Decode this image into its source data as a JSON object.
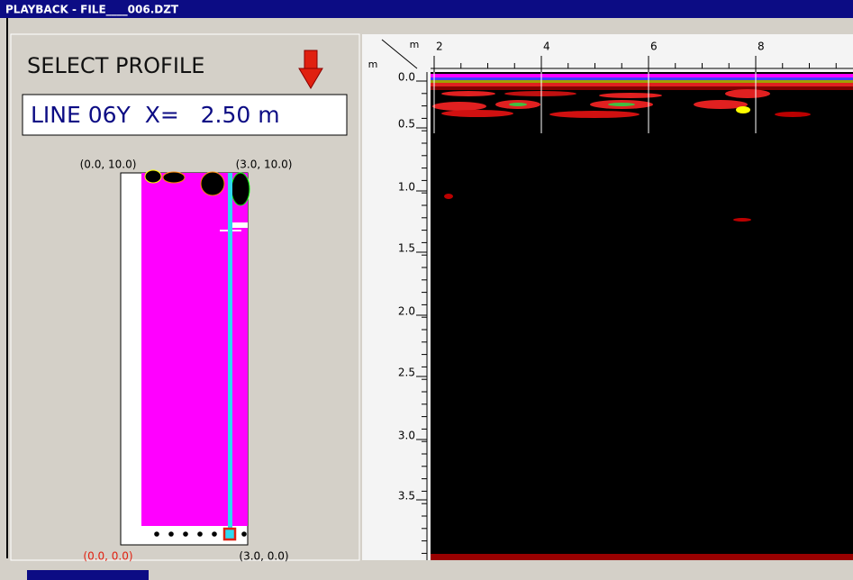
{
  "title_bar": {
    "title": "PLAYBACK - FILE____006.DZT"
  },
  "left_panel": {
    "heading": "SELECT PROFILE",
    "readout": "LINE 06Y  X=   2.50 m",
    "grid": {
      "top_left": "(0.0, 10.0)",
      "top_right": "(3.0, 10.0)",
      "bottom_left": "(0.0, 0.0)",
      "bottom_right": "(3.0, 0.0)"
    }
  },
  "radargram": {
    "x_unit": "m",
    "y_unit": "m",
    "x_ticks": [
      "2",
      "4",
      "6",
      "8"
    ],
    "depth_ticks": [
      "0.0",
      "0.5",
      "1.0",
      "1.5",
      "2.0",
      "2.5",
      "3.0",
      "3.5"
    ]
  }
}
